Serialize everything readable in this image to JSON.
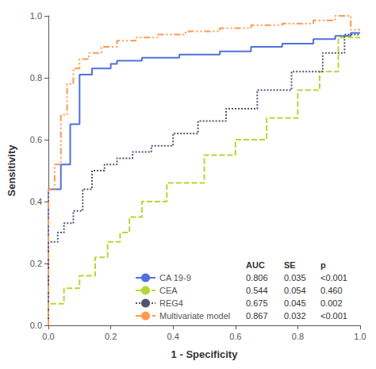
{
  "chart_data": {
    "type": "line",
    "xlabel": "1 - Specificity",
    "ylabel": "Sensitivity",
    "xlim": [
      0.0,
      1.0
    ],
    "ylim": [
      0.0,
      1.0
    ],
    "xticks": [
      {
        "value": 0.0,
        "label": "0.0"
      },
      0.2,
      0.4,
      0.6,
      0.8,
      {
        "value": 1.0,
        "label": "1.0"
      }
    ],
    "yticks": [
      {
        "value": 0.0,
        "label": "0.0"
      },
      0.2,
      0.4,
      0.6,
      0.8,
      {
        "value": 1.0,
        "label": "1.0"
      }
    ],
    "grid": false,
    "legend": "lower right",
    "series": [
      {
        "name": "CA 19-9",
        "line_style": "solid",
        "x": [
          0.0,
          0.0,
          0.04,
          0.04,
          0.07,
          0.07,
          0.1,
          0.1,
          0.14,
          0.14,
          0.2,
          0.2,
          0.22,
          0.22,
          0.3,
          0.3,
          0.42,
          0.42,
          0.55,
          0.55,
          0.65,
          0.65,
          0.75,
          0.75,
          0.85,
          0.85,
          0.92,
          0.92,
          0.97,
          0.97,
          1.0
        ],
        "values": [
          0.0,
          0.44,
          0.44,
          0.52,
          0.52,
          0.65,
          0.65,
          0.81,
          0.81,
          0.83,
          0.83,
          0.845,
          0.845,
          0.855,
          0.855,
          0.865,
          0.865,
          0.875,
          0.875,
          0.885,
          0.885,
          0.9,
          0.9,
          0.91,
          0.91,
          0.925,
          0.925,
          0.935,
          0.935,
          0.945,
          0.945
        ]
      },
      {
        "name": "CEA",
        "line_style": "dashed",
        "x": [
          0.0,
          0.0,
          0.05,
          0.05,
          0.1,
          0.1,
          0.15,
          0.15,
          0.19,
          0.19,
          0.23,
          0.23,
          0.26,
          0.26,
          0.3,
          0.3,
          0.38,
          0.38,
          0.5,
          0.5,
          0.6,
          0.6,
          0.7,
          0.7,
          0.8,
          0.8,
          0.87,
          0.87,
          0.93,
          0.93,
          1.0
        ],
        "values": [
          0.0,
          0.07,
          0.07,
          0.12,
          0.12,
          0.16,
          0.16,
          0.22,
          0.22,
          0.27,
          0.27,
          0.3,
          0.3,
          0.35,
          0.35,
          0.4,
          0.4,
          0.46,
          0.46,
          0.55,
          0.55,
          0.6,
          0.6,
          0.67,
          0.67,
          0.76,
          0.76,
          0.82,
          0.82,
          0.93,
          0.93
        ]
      },
      {
        "name": "REG4",
        "line_style": "dotted",
        "x": [
          0.0,
          0.0,
          0.03,
          0.03,
          0.05,
          0.05,
          0.08,
          0.08,
          0.11,
          0.11,
          0.14,
          0.14,
          0.18,
          0.18,
          0.22,
          0.22,
          0.27,
          0.27,
          0.33,
          0.33,
          0.4,
          0.4,
          0.48,
          0.48,
          0.57,
          0.57,
          0.67,
          0.67,
          0.78,
          0.78,
          0.88,
          0.88,
          0.95,
          0.95,
          1.0
        ],
        "values": [
          0.0,
          0.27,
          0.27,
          0.3,
          0.3,
          0.33,
          0.33,
          0.37,
          0.37,
          0.44,
          0.44,
          0.5,
          0.5,
          0.52,
          0.52,
          0.54,
          0.54,
          0.56,
          0.56,
          0.58,
          0.58,
          0.62,
          0.62,
          0.66,
          0.66,
          0.7,
          0.7,
          0.76,
          0.76,
          0.82,
          0.82,
          0.88,
          0.88,
          0.94,
          0.94
        ]
      },
      {
        "name": "Multivariate model",
        "line_style": "dashdot",
        "x": [
          0.0,
          0.0,
          0.02,
          0.02,
          0.04,
          0.04,
          0.06,
          0.06,
          0.08,
          0.08,
          0.1,
          0.1,
          0.13,
          0.13,
          0.17,
          0.17,
          0.22,
          0.22,
          0.28,
          0.28,
          0.35,
          0.35,
          0.44,
          0.44,
          0.55,
          0.55,
          0.65,
          0.65,
          0.75,
          0.75,
          0.85,
          0.85,
          0.92,
          0.92,
          0.97,
          0.97,
          1.0
        ],
        "values": [
          0.0,
          0.44,
          0.44,
          0.52,
          0.52,
          0.68,
          0.68,
          0.78,
          0.78,
          0.83,
          0.83,
          0.86,
          0.86,
          0.88,
          0.88,
          0.9,
          0.9,
          0.92,
          0.92,
          0.93,
          0.93,
          0.94,
          0.94,
          0.95,
          0.95,
          0.96,
          0.96,
          0.97,
          0.97,
          0.975,
          0.975,
          0.985,
          0.985,
          1.0,
          1.0,
          0.955,
          0.955
        ]
      }
    ],
    "table": {
      "columns": [
        "AUC",
        "SE",
        "p"
      ],
      "rows": [
        [
          "0.806",
          "0.035",
          "<0.001"
        ],
        [
          "0.544",
          "0.054",
          "0.460"
        ],
        [
          "0.675",
          "0.045",
          "0.002"
        ],
        [
          "0.867",
          "0.032",
          "<0.001"
        ]
      ]
    }
  }
}
